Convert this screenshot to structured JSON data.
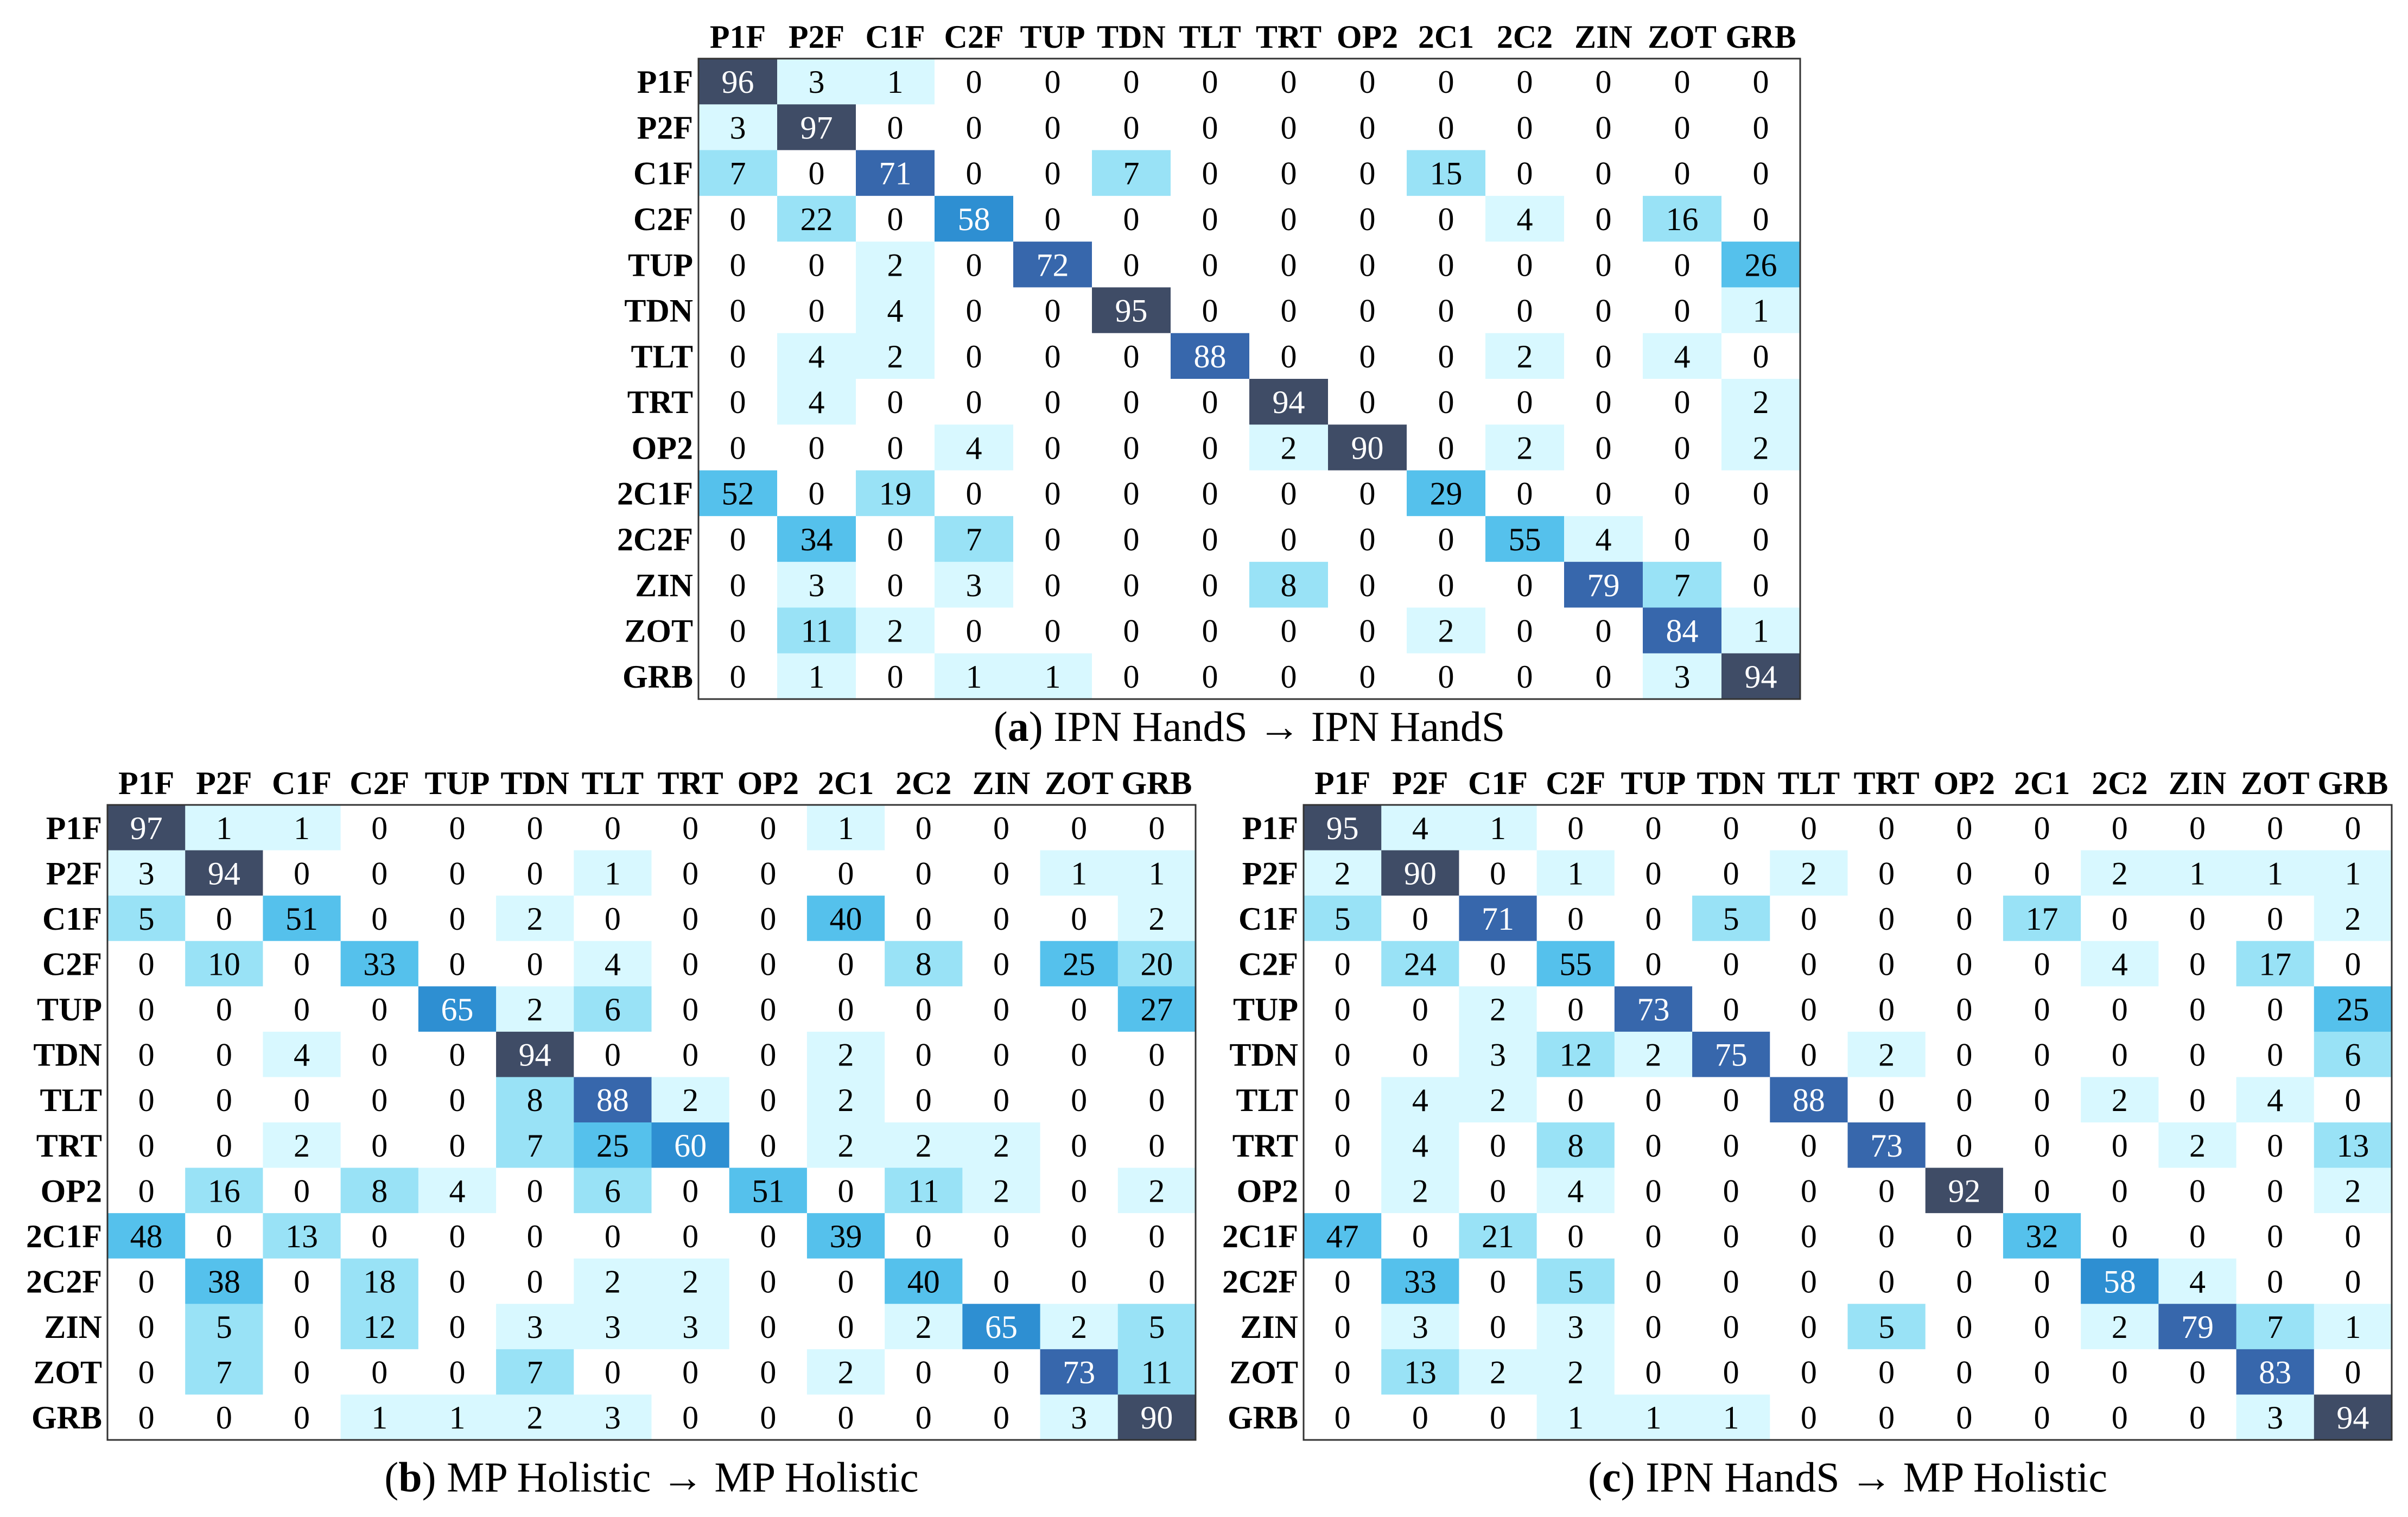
{
  "palette": {
    "frame": "#333333",
    "text_dark": "#000000",
    "text_light": "#ffffff",
    "scale": [
      "#ffffff",
      "#d8f8ff",
      "#99e2f6",
      "#55c1ec",
      "#2e8fd2",
      "#3767ac",
      "#3f4c66"
    ]
  },
  "chart_data": [
    {
      "type": "heatmap",
      "id": "a",
      "caption_letter": "a",
      "caption_text": "IPN HandS → IPN HandS",
      "x_categories": [
        "P1F",
        "P2F",
        "C1F",
        "C2F",
        "TUP",
        "TDN",
        "TLT",
        "TRT",
        "OP2",
        "2C1",
        "2C2",
        "ZIN",
        "ZOT",
        "GRB"
      ],
      "y_categories": [
        "P1F",
        "P2F",
        "C1F",
        "C2F",
        "TUP",
        "TDN",
        "TLT",
        "TRT",
        "OP2",
        "2C1F",
        "2C2F",
        "ZIN",
        "ZOT",
        "GRB"
      ],
      "values": [
        [
          96,
          3,
          1,
          0,
          0,
          0,
          0,
          0,
          0,
          0,
          0,
          0,
          0,
          0
        ],
        [
          3,
          97,
          0,
          0,
          0,
          0,
          0,
          0,
          0,
          0,
          0,
          0,
          0,
          0
        ],
        [
          7,
          0,
          71,
          0,
          0,
          7,
          0,
          0,
          0,
          15,
          0,
          0,
          0,
          0
        ],
        [
          0,
          22,
          0,
          58,
          0,
          0,
          0,
          0,
          0,
          0,
          4,
          0,
          16,
          0
        ],
        [
          0,
          0,
          2,
          0,
          72,
          0,
          0,
          0,
          0,
          0,
          0,
          0,
          0,
          26
        ],
        [
          0,
          0,
          4,
          0,
          0,
          95,
          0,
          0,
          0,
          0,
          0,
          0,
          0,
          1
        ],
        [
          0,
          4,
          2,
          0,
          0,
          0,
          88,
          0,
          0,
          0,
          2,
          0,
          4,
          0
        ],
        [
          0,
          4,
          0,
          0,
          0,
          0,
          0,
          94,
          0,
          0,
          0,
          0,
          0,
          2
        ],
        [
          0,
          0,
          0,
          4,
          0,
          0,
          0,
          2,
          90,
          0,
          2,
          0,
          0,
          2
        ],
        [
          52,
          0,
          19,
          0,
          0,
          0,
          0,
          0,
          0,
          29,
          0,
          0,
          0,
          0
        ],
        [
          0,
          34,
          0,
          7,
          0,
          0,
          0,
          0,
          0,
          0,
          55,
          4,
          0,
          0
        ],
        [
          0,
          3,
          0,
          3,
          0,
          0,
          0,
          8,
          0,
          0,
          0,
          79,
          7,
          0
        ],
        [
          0,
          11,
          2,
          0,
          0,
          0,
          0,
          0,
          0,
          2,
          0,
          0,
          84,
          1
        ],
        [
          0,
          1,
          0,
          1,
          1,
          0,
          0,
          0,
          0,
          0,
          0,
          0,
          3,
          94
        ]
      ]
    },
    {
      "type": "heatmap",
      "id": "b",
      "caption_letter": "b",
      "caption_text": "MP Holistic → MP Holistic",
      "x_categories": [
        "P1F",
        "P2F",
        "C1F",
        "C2F",
        "TUP",
        "TDN",
        "TLT",
        "TRT",
        "OP2",
        "2C1",
        "2C2",
        "ZIN",
        "ZOT",
        "GRB"
      ],
      "y_categories": [
        "P1F",
        "P2F",
        "C1F",
        "C2F",
        "TUP",
        "TDN",
        "TLT",
        "TRT",
        "OP2",
        "2C1F",
        "2C2F",
        "ZIN",
        "ZOT",
        "GRB"
      ],
      "values": [
        [
          97,
          1,
          1,
          0,
          0,
          0,
          0,
          0,
          0,
          1,
          0,
          0,
          0,
          0
        ],
        [
          3,
          94,
          0,
          0,
          0,
          0,
          1,
          0,
          0,
          0,
          0,
          0,
          1,
          1
        ],
        [
          5,
          0,
          51,
          0,
          0,
          2,
          0,
          0,
          0,
          40,
          0,
          0,
          0,
          2
        ],
        [
          0,
          10,
          0,
          33,
          0,
          0,
          4,
          0,
          0,
          0,
          8,
          0,
          25,
          20
        ],
        [
          0,
          0,
          0,
          0,
          65,
          2,
          6,
          0,
          0,
          0,
          0,
          0,
          0,
          27
        ],
        [
          0,
          0,
          4,
          0,
          0,
          94,
          0,
          0,
          0,
          2,
          0,
          0,
          0,
          0
        ],
        [
          0,
          0,
          0,
          0,
          0,
          8,
          88,
          2,
          0,
          2,
          0,
          0,
          0,
          0
        ],
        [
          0,
          0,
          2,
          0,
          0,
          7,
          25,
          60,
          0,
          2,
          2,
          2,
          0,
          0
        ],
        [
          0,
          16,
          0,
          8,
          4,
          0,
          6,
          0,
          51,
          0,
          11,
          2,
          0,
          2
        ],
        [
          48,
          0,
          13,
          0,
          0,
          0,
          0,
          0,
          0,
          39,
          0,
          0,
          0,
          0
        ],
        [
          0,
          38,
          0,
          18,
          0,
          0,
          2,
          2,
          0,
          0,
          40,
          0,
          0,
          0
        ],
        [
          0,
          5,
          0,
          12,
          0,
          3,
          3,
          3,
          0,
          0,
          2,
          65,
          2,
          5
        ],
        [
          0,
          7,
          0,
          0,
          0,
          7,
          0,
          0,
          0,
          2,
          0,
          0,
          73,
          11
        ],
        [
          0,
          0,
          0,
          1,
          1,
          2,
          3,
          0,
          0,
          0,
          0,
          0,
          3,
          90
        ]
      ]
    },
    {
      "type": "heatmap",
      "id": "c",
      "caption_letter": "c",
      "caption_text": "IPN HandS → MP Holistic",
      "x_categories": [
        "P1F",
        "P2F",
        "C1F",
        "C2F",
        "TUP",
        "TDN",
        "TLT",
        "TRT",
        "OP2",
        "2C1",
        "2C2",
        "ZIN",
        "ZOT",
        "GRB"
      ],
      "y_categories": [
        "P1F",
        "P2F",
        "C1F",
        "C2F",
        "TUP",
        "TDN",
        "TLT",
        "TRT",
        "OP2",
        "2C1F",
        "2C2F",
        "ZIN",
        "ZOT",
        "GRB"
      ],
      "values": [
        [
          95,
          4,
          1,
          0,
          0,
          0,
          0,
          0,
          0,
          0,
          0,
          0,
          0,
          0
        ],
        [
          2,
          90,
          0,
          1,
          0,
          0,
          2,
          0,
          0,
          0,
          2,
          1,
          1,
          1
        ],
        [
          5,
          0,
          71,
          0,
          0,
          5,
          0,
          0,
          0,
          17,
          0,
          0,
          0,
          2
        ],
        [
          0,
          24,
          0,
          55,
          0,
          0,
          0,
          0,
          0,
          0,
          4,
          0,
          17,
          0
        ],
        [
          0,
          0,
          2,
          0,
          73,
          0,
          0,
          0,
          0,
          0,
          0,
          0,
          0,
          25
        ],
        [
          0,
          0,
          3,
          12,
          2,
          75,
          0,
          2,
          0,
          0,
          0,
          0,
          0,
          6
        ],
        [
          0,
          4,
          2,
          0,
          0,
          0,
          88,
          0,
          0,
          0,
          2,
          0,
          4,
          0
        ],
        [
          0,
          4,
          0,
          8,
          0,
          0,
          0,
          73,
          0,
          0,
          0,
          2,
          0,
          13
        ],
        [
          0,
          2,
          0,
          4,
          0,
          0,
          0,
          0,
          92,
          0,
          0,
          0,
          0,
          2
        ],
        [
          47,
          0,
          21,
          0,
          0,
          0,
          0,
          0,
          0,
          32,
          0,
          0,
          0,
          0
        ],
        [
          0,
          33,
          0,
          5,
          0,
          0,
          0,
          0,
          0,
          0,
          58,
          4,
          0,
          0
        ],
        [
          0,
          3,
          0,
          3,
          0,
          0,
          0,
          5,
          0,
          0,
          2,
          79,
          7,
          1
        ],
        [
          0,
          13,
          2,
          2,
          0,
          0,
          0,
          0,
          0,
          0,
          0,
          0,
          83,
          0
        ],
        [
          0,
          0,
          0,
          1,
          1,
          1,
          0,
          0,
          0,
          0,
          0,
          0,
          3,
          94
        ]
      ]
    }
  ]
}
